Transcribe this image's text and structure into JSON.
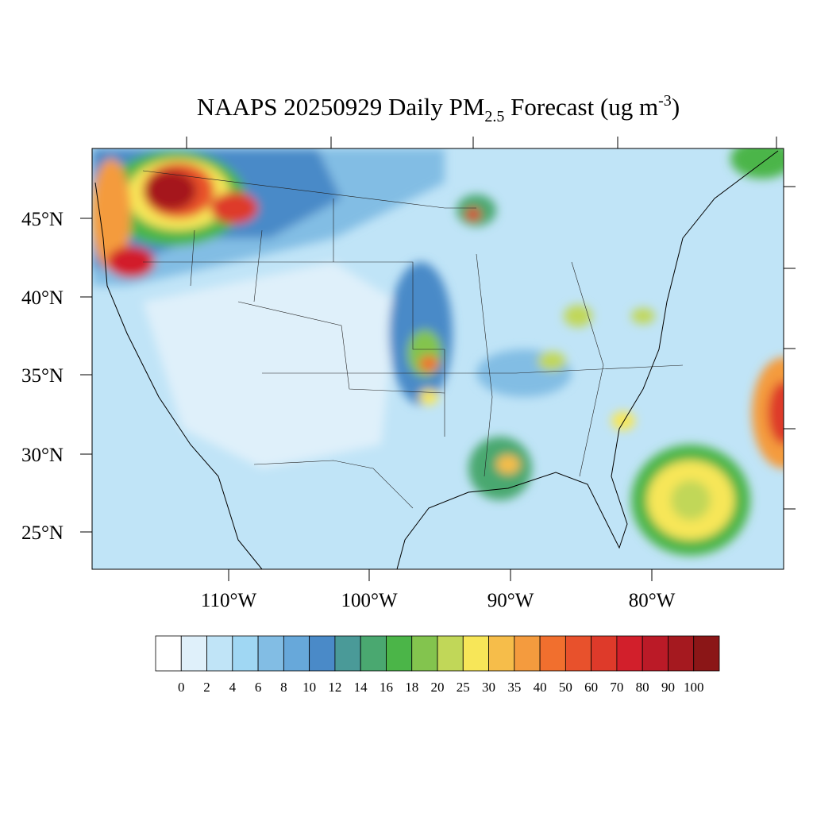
{
  "title": {
    "main": "NAAPS 20250929 Daily PM",
    "sub": "2.5",
    "rest": " Forecast (ug m",
    "sup": "-3",
    "end": ")"
  },
  "lat_labels": [
    "45°N",
    "40°N",
    "35°N",
    "30°N",
    "25°N"
  ],
  "lon_labels": [
    "110°W",
    "100°W",
    "90°W",
    "80°W"
  ],
  "colorbar": {
    "colors": [
      "#ffffff",
      "#dff0fa",
      "#c0e4f7",
      "#a0d7f3",
      "#82bde4",
      "#67a8da",
      "#4a8ac8",
      "#4a9a98",
      "#4aa870",
      "#4bb548",
      "#83c44e",
      "#c1d758",
      "#f7e658",
      "#f6bd4a",
      "#f49b3e",
      "#f16f2e",
      "#e8512c",
      "#de3a2a",
      "#d21f2b",
      "#bb1a27",
      "#a5191f",
      "#8b1617"
    ],
    "labels": [
      "0",
      "2",
      "4",
      "6",
      "8",
      "10",
      "12",
      "14",
      "16",
      "18",
      "20",
      "25",
      "30",
      "35",
      "40",
      "50",
      "60",
      "70",
      "80",
      "90",
      "100"
    ]
  }
}
